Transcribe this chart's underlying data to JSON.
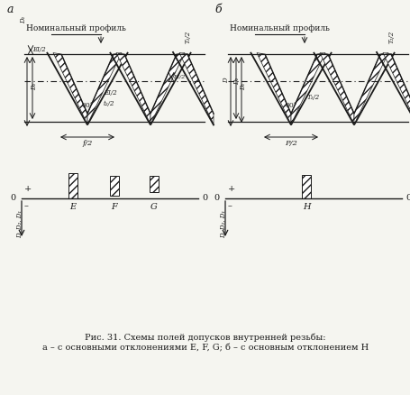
{
  "title_a": "а",
  "title_b": "б",
  "caption_line1": "Рис. 31. Схемы полей допусков внутренней резьбы:",
  "caption_line2": "а – с основными отклонениями E, F, G; б – с основным отклонением H",
  "label_nominal": "Номинальный профиль",
  "label_E": "E",
  "label_F": "F",
  "label_G": "G",
  "label_H": "H",
  "bg_color": "#f5f5f0",
  "line_color": "#1a1a1a",
  "fig_width": 4.56,
  "fig_height": 4.38,
  "dpi": 100
}
